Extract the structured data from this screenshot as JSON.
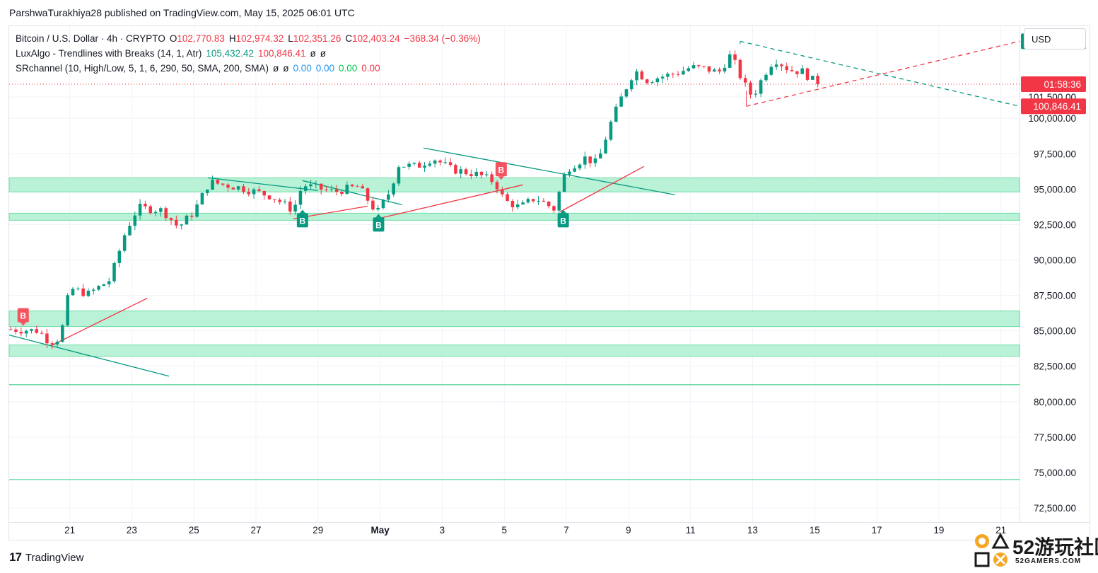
{
  "header": {
    "published": "ParshwaTurakhiya28 published on TradingView.com, May 15, 2025 06:01 UTC"
  },
  "legend": {
    "symbol": "Bitcoin / U.S. Dollar · 4h · CRYPTO",
    "open_label": "O",
    "open": "102,770.83",
    "high_label": "H",
    "high": "102,974.32",
    "low_label": "L",
    "low": "102,351.26",
    "close_label": "C",
    "close": "102,403.24",
    "change": "−368.34 (−0.36%)",
    "indicator1_name": "LuxAlgo - Trendlines with Breaks (14, 1, Atr)",
    "indicator1_v1": "105,432.42",
    "indicator1_v2": "100,846.41",
    "indicator1_v3": "ø",
    "indicator1_v4": "ø",
    "indicator2_name": "SRchannel (10, High/Low, 5, 1, 6, 290, 50, SMA, 200, SMA)",
    "indicator2_v1": "ø",
    "indicator2_v2": "ø",
    "indicator2_v3": "0.00",
    "indicator2_v4": "0.00",
    "indicator2_v5": "0.00",
    "indicator2_v6": "0.00"
  },
  "currency_button": "USD",
  "footer": {
    "brand": "TradingView",
    "brand_mark": "17"
  },
  "watermark": {
    "big": "52游玩社区",
    "small": "52GAMERS.COM"
  },
  "colors": {
    "up": "#089981",
    "down": "#f23645",
    "zone": "#b9f2d6",
    "zone_border": "#6fdba7",
    "trend_down": "#089981",
    "trend_up": "#f23645",
    "grid": "#f0f3fa"
  },
  "chart_data": {
    "type": "candlestick",
    "title": "Bitcoin / U.S. Dollar · 4h · CRYPTO",
    "y_ticks": [
      "72,500.00",
      "75,000.00",
      "77,500.00",
      "80,000.00",
      "82,500.00",
      "85,000.00",
      "87,500.00",
      "90,000.00",
      "92,500.00",
      "95,000.00",
      "97,500.00",
      "100,000.00",
      "101,500.00"
    ],
    "ylim": [
      71500,
      106500
    ],
    "x_ticks": [
      "21",
      "23",
      "25",
      "27",
      "29",
      "May",
      "3",
      "5",
      "7",
      "9",
      "11",
      "13",
      "15",
      "17",
      "19",
      "21"
    ],
    "x_tick_days": [
      21,
      23,
      25,
      27,
      29,
      31,
      33,
      35,
      37,
      39,
      41,
      43,
      45,
      47,
      49,
      51
    ],
    "x_start_day": 19.05,
    "x_end_day": 51.6,
    "price_labels": [
      {
        "text": "105,432.42",
        "value": 105432.42,
        "kind": "teal"
      },
      {
        "text": "01:58:36",
        "value": 102403.24,
        "kind": "red"
      },
      {
        "text": "100,846.41",
        "value": 100846.41,
        "kind": "red"
      }
    ],
    "current_price": 102403.24,
    "candle_anchors": [
      [
        19.1,
        85100
      ],
      [
        20.0,
        85000
      ],
      [
        20.35,
        84200
      ],
      [
        20.7,
        84500
      ],
      [
        21.0,
        88000
      ],
      [
        21.6,
        87600
      ],
      [
        22.3,
        88600
      ],
      [
        22.8,
        92000
      ],
      [
        23.2,
        93700
      ],
      [
        24.0,
        93500
      ],
      [
        24.5,
        92300
      ],
      [
        25.0,
        93400
      ],
      [
        25.5,
        95500
      ],
      [
        26.5,
        95100
      ],
      [
        27.5,
        94500
      ],
      [
        28.2,
        93500
      ],
      [
        28.5,
        95300
      ],
      [
        29.5,
        94800
      ],
      [
        30.3,
        95200
      ],
      [
        30.9,
        93300
      ],
      [
        31.3,
        94800
      ],
      [
        31.6,
        96700
      ],
      [
        32.2,
        96600
      ],
      [
        32.7,
        97200
      ],
      [
        33.3,
        96400
      ],
      [
        34.2,
        96000
      ],
      [
        34.7,
        95500
      ],
      [
        35.0,
        94200
      ],
      [
        35.5,
        93700
      ],
      [
        36.0,
        94400
      ],
      [
        36.6,
        93600
      ],
      [
        37.0,
        96400
      ],
      [
        37.6,
        97200
      ],
      [
        38.0,
        96800
      ],
      [
        38.4,
        99500
      ],
      [
        38.8,
        101600
      ],
      [
        39.2,
        103400
      ],
      [
        39.6,
        102700
      ],
      [
        40.2,
        103000
      ],
      [
        40.7,
        103300
      ],
      [
        41.0,
        103600
      ],
      [
        41.5,
        103500
      ],
      [
        41.9,
        103200
      ],
      [
        42.3,
        104500
      ],
      [
        42.7,
        102500
      ],
      [
        43.0,
        101500
      ],
      [
        43.4,
        103200
      ],
      [
        43.7,
        104200
      ],
      [
        44.2,
        103400
      ],
      [
        44.6,
        103300
      ],
      [
        45.1,
        102400
      ]
    ],
    "zones": [
      {
        "low": 94800,
        "high": 95800
      },
      {
        "low": 92800,
        "high": 93300
      },
      {
        "low": 85300,
        "high": 86400
      },
      {
        "low": 83200,
        "high": 84000
      }
    ],
    "levels": [
      81200,
      74500
    ],
    "trend_down": [
      [
        [
          19.05,
          84700
        ],
        [
          24.2,
          81800
        ]
      ],
      [
        [
          25.45,
          95800
        ],
        [
          29.0,
          94900
        ]
      ],
      [
        [
          28.5,
          95600
        ],
        [
          31.7,
          93900
        ]
      ],
      [
        [
          32.4,
          97900
        ],
        [
          40.5,
          94600
        ]
      ],
      [
        [
          42.6,
          105432.42
        ],
        [
          51.6,
          100846.41
        ]
      ]
    ],
    "trend_up": [
      [
        [
          20.4,
          83950
        ],
        [
          23.5,
          87300
        ]
      ],
      [
        [
          28.2,
          92900
        ],
        [
          30.6,
          93800
        ]
      ],
      [
        [
          30.9,
          92900
        ],
        [
          35.6,
          95300
        ]
      ],
      [
        [
          36.8,
          93400
        ],
        [
          39.5,
          96600
        ]
      ],
      [
        [
          42.8,
          100846.41
        ],
        [
          51.6,
          105432.42
        ]
      ]
    ],
    "markers": [
      {
        "label": "B",
        "day": 19.5,
        "value": 85300,
        "side": "above",
        "kind": "red"
      },
      {
        "label": "B",
        "day": 28.5,
        "value": 93600,
        "side": "below",
        "kind": "teal"
      },
      {
        "label": "B",
        "day": 30.95,
        "value": 93300,
        "side": "below",
        "kind": "teal"
      },
      {
        "label": "B",
        "day": 34.9,
        "value": 95600,
        "side": "above",
        "kind": "red"
      },
      {
        "label": "B",
        "day": 36.9,
        "value": 93600,
        "side": "below",
        "kind": "teal"
      }
    ]
  }
}
